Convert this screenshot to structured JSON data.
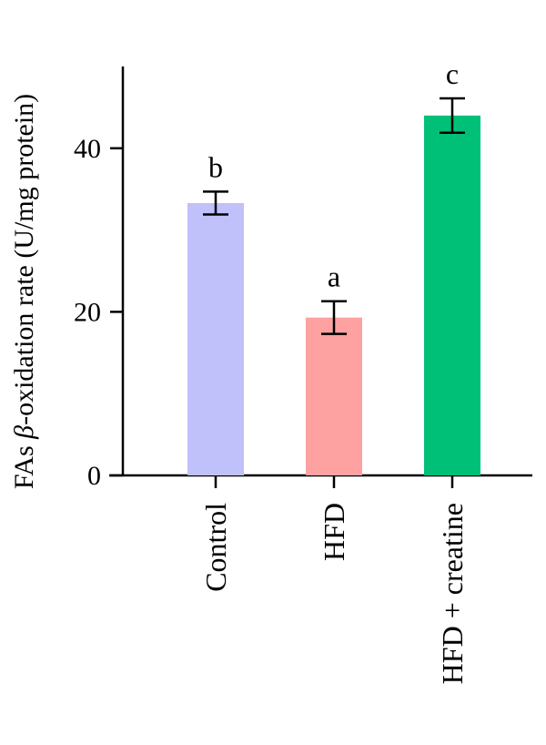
{
  "chart_data": {
    "type": "bar",
    "title": "",
    "xlabel": "",
    "ylabel": "FAs β-oxidation rate (U/mg protein)",
    "ylabel_parts": {
      "prefix": "FAs ",
      "symbol": "β",
      "suffix": "-oxidation rate (U/mg protein)"
    },
    "ylim": [
      0,
      50
    ],
    "yticks": [
      0,
      20,
      40
    ],
    "categories": [
      "Control",
      "HFD",
      "HFD + creatine"
    ],
    "values": [
      33.3,
      19.3,
      44.0
    ],
    "errors": [
      1.4,
      2.0,
      2.1
    ],
    "significance": [
      "b",
      "a",
      "c"
    ],
    "colors": [
      "#c0c0fb",
      "#fda1a1",
      "#00c078"
    ]
  }
}
